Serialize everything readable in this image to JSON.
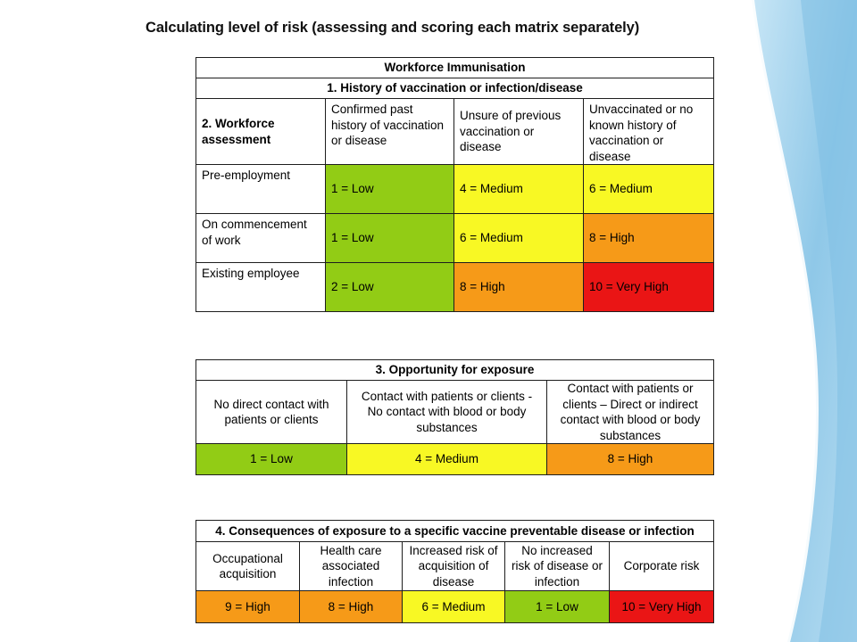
{
  "heading": "Calculating level of risk (assessing and scoring each matrix separately)",
  "table1": {
    "title": "Workforce Immunisation",
    "subtitle": "1. History of vaccination or infection/disease",
    "row_header": "2. Workforce assessment",
    "columns": [
      "Confirmed past history of vaccination or disease",
      "Unsure of previous vaccination or disease",
      "Unvaccinated or no known history of vaccination or disease"
    ],
    "rows": [
      {
        "label": "Pre-employment",
        "cells": [
          "1 = Low",
          "4 = Medium",
          "6 = Medium"
        ]
      },
      {
        "label": "On commencement of work",
        "cells": [
          "1 = Low",
          "6 = Medium",
          "8 = High"
        ]
      },
      {
        "label": "Existing employee",
        "cells": [
          "2 = Low",
          "8 = High",
          "10 = Very High"
        ]
      }
    ]
  },
  "table2": {
    "title": "3. Opportunity for exposure",
    "columns": [
      "No direct contact with patients or clients",
      "Contact with patients or clients - No contact with blood or body substances",
      "Contact with patients or clients – Direct or indirect contact with blood or body substances"
    ],
    "cells": [
      "1 = Low",
      "4 = Medium",
      "8 = High"
    ]
  },
  "table3": {
    "title": "4. Consequences of exposure to a specific vaccine preventable disease or infection",
    "columns": [
      "Occupational acquisition",
      "Health care associated infection",
      "Increased risk of acquisition of disease",
      "No increased risk of disease or infection",
      "Corporate risk"
    ],
    "cells": [
      "9 = High",
      "8 = High",
      "6 = Medium",
      "1 = Low",
      "10 = Very High"
    ]
  },
  "colors": {
    "low": "#92cc15",
    "medium": "#f8f824",
    "high": "#f69a18",
    "very_high": "#ea1515",
    "decoration": "#9fd0ec"
  }
}
